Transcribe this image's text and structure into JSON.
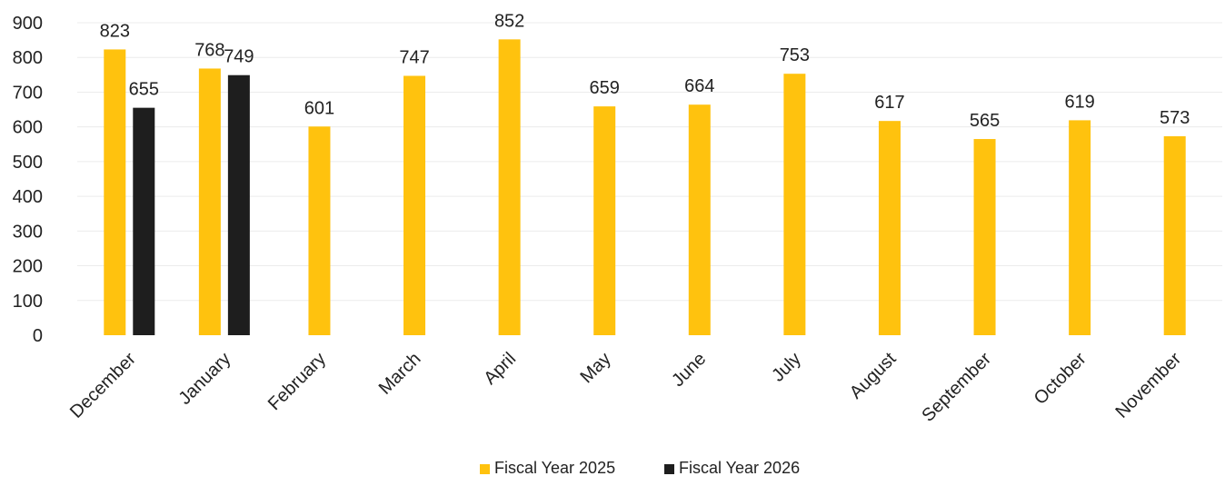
{
  "chart_data": {
    "type": "bar",
    "title": "",
    "xlabel": "",
    "ylabel": "",
    "ylim": [
      0,
      900
    ],
    "yticks": [
      0,
      100,
      200,
      300,
      400,
      500,
      600,
      700,
      800,
      900
    ],
    "grid": true,
    "legend_position": "bottom",
    "categories": [
      "December",
      "January",
      "February",
      "March",
      "April",
      "May",
      "June",
      "July",
      "August",
      "September",
      "October",
      "November"
    ],
    "series": [
      {
        "name": "Fiscal Year 2025",
        "color": "#FFC20E",
        "values": [
          823,
          768,
          601,
          747,
          852,
          659,
          664,
          753,
          617,
          565,
          619,
          573
        ]
      },
      {
        "name": "Fiscal Year 2026",
        "color": "#1E1E1E",
        "values": [
          655,
          749,
          null,
          null,
          null,
          null,
          null,
          null,
          null,
          null,
          null,
          null
        ]
      }
    ]
  }
}
